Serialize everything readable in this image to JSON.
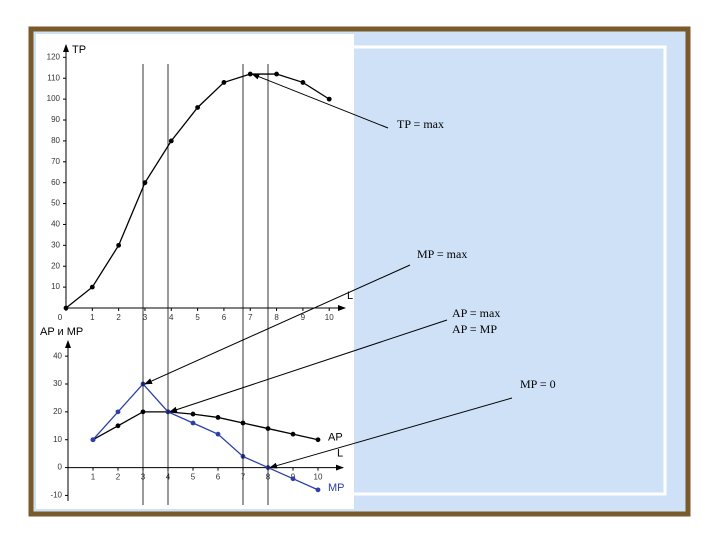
{
  "chart_data": [
    {
      "type": "line",
      "y_label": "TP",
      "x_label": "L",
      "x": [
        0,
        1,
        2,
        3,
        4,
        5,
        6,
        7,
        8,
        9,
        10
      ],
      "values": [
        0,
        10,
        30,
        60,
        80,
        96,
        108,
        112,
        112,
        108,
        100
      ],
      "color": "#000000",
      "xlim": [
        0,
        10.6
      ],
      "ylim": [
        0,
        124
      ],
      "xticks": [
        0,
        1,
        2,
        3,
        4,
        5,
        6,
        7,
        8,
        9,
        10
      ],
      "yticks": [
        10,
        20,
        30,
        40,
        50,
        60,
        70,
        80,
        90,
        100,
        110,
        120
      ],
      "annotations": [
        "TP = max"
      ]
    },
    {
      "type": "line",
      "y_label": "AP и MP",
      "x_label": "L",
      "x": [
        1,
        2,
        3,
        4,
        5,
        6,
        7,
        8,
        9,
        10
      ],
      "series": [
        {
          "name": "AP",
          "color": "#000000",
          "values": [
            10,
            15,
            20,
            20,
            19.2,
            18,
            16,
            14,
            12,
            10
          ]
        },
        {
          "name": "MP",
          "color": "#2b3fa6",
          "values": [
            10,
            20,
            30,
            20,
            16,
            12,
            4,
            0,
            -4,
            -8
          ]
        }
      ],
      "xlim": [
        0,
        11
      ],
      "ylim": [
        -12,
        44
      ],
      "xticks": [
        1,
        2,
        3,
        4,
        5,
        6,
        7,
        8,
        9,
        10
      ],
      "yticks": [
        -10,
        0,
        10,
        20,
        30,
        40
      ],
      "annotations": [
        "MP = max",
        "AP = max",
        "AP = MP",
        "MP = 0"
      ]
    }
  ]
}
